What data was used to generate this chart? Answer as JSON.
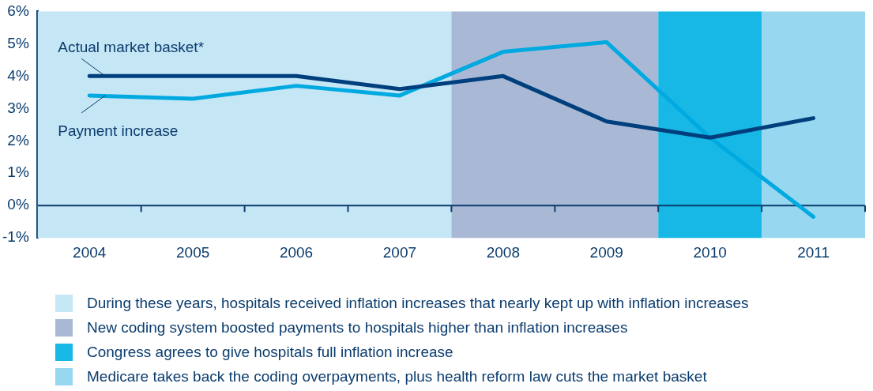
{
  "chart_data": {
    "type": "line",
    "categories": [
      "2004",
      "2005",
      "2006",
      "2007",
      "2008",
      "2009",
      "2010",
      "2011"
    ],
    "series": [
      {
        "name": "Actual market basket*",
        "color": "#003f7d",
        "values": [
          4.0,
          4.0,
          4.0,
          3.6,
          4.0,
          2.6,
          2.1,
          2.7
        ]
      },
      {
        "name": "Payment increase",
        "color": "#00a9e0",
        "values": [
          3.4,
          3.3,
          3.7,
          3.4,
          4.75,
          5.05,
          2.1,
          -0.35
        ]
      }
    ],
    "ylim": [
      -1,
      6
    ],
    "yticks": [
      {
        "value": -1,
        "label": "-1%"
      },
      {
        "value": 0,
        "label": "0%"
      },
      {
        "value": 1,
        "label": "1%"
      },
      {
        "value": 2,
        "label": "2%"
      },
      {
        "value": 3,
        "label": "3%"
      },
      {
        "value": 4,
        "label": "4%"
      },
      {
        "value": 5,
        "label": "5%"
      },
      {
        "value": 6,
        "label": "6%"
      }
    ],
    "bands": [
      {
        "axis": "x",
        "from": "2004",
        "to": "2007",
        "label": "During these years, hospitals received inflation increases that nearly kept up with inflation increases",
        "color": "#c5e6f5"
      },
      {
        "axis": "x",
        "from": "2008",
        "to": "2009",
        "label": "New coding system boosted payments to hospitals higher than inflation increases",
        "color": "#a9b9d5"
      },
      {
        "axis": "x",
        "from": "2010",
        "to": "2010",
        "label": "Congress agrees to give hospitals full inflation increase",
        "color": "#17b8e6"
      },
      {
        "axis": "x",
        "from": "2011",
        "to": "2011",
        "label": "Medicare takes back the coding overpayments, plus health reform law cuts the market basket",
        "color": "#97d7f0"
      }
    ],
    "grid": false,
    "legend": "bottom"
  }
}
